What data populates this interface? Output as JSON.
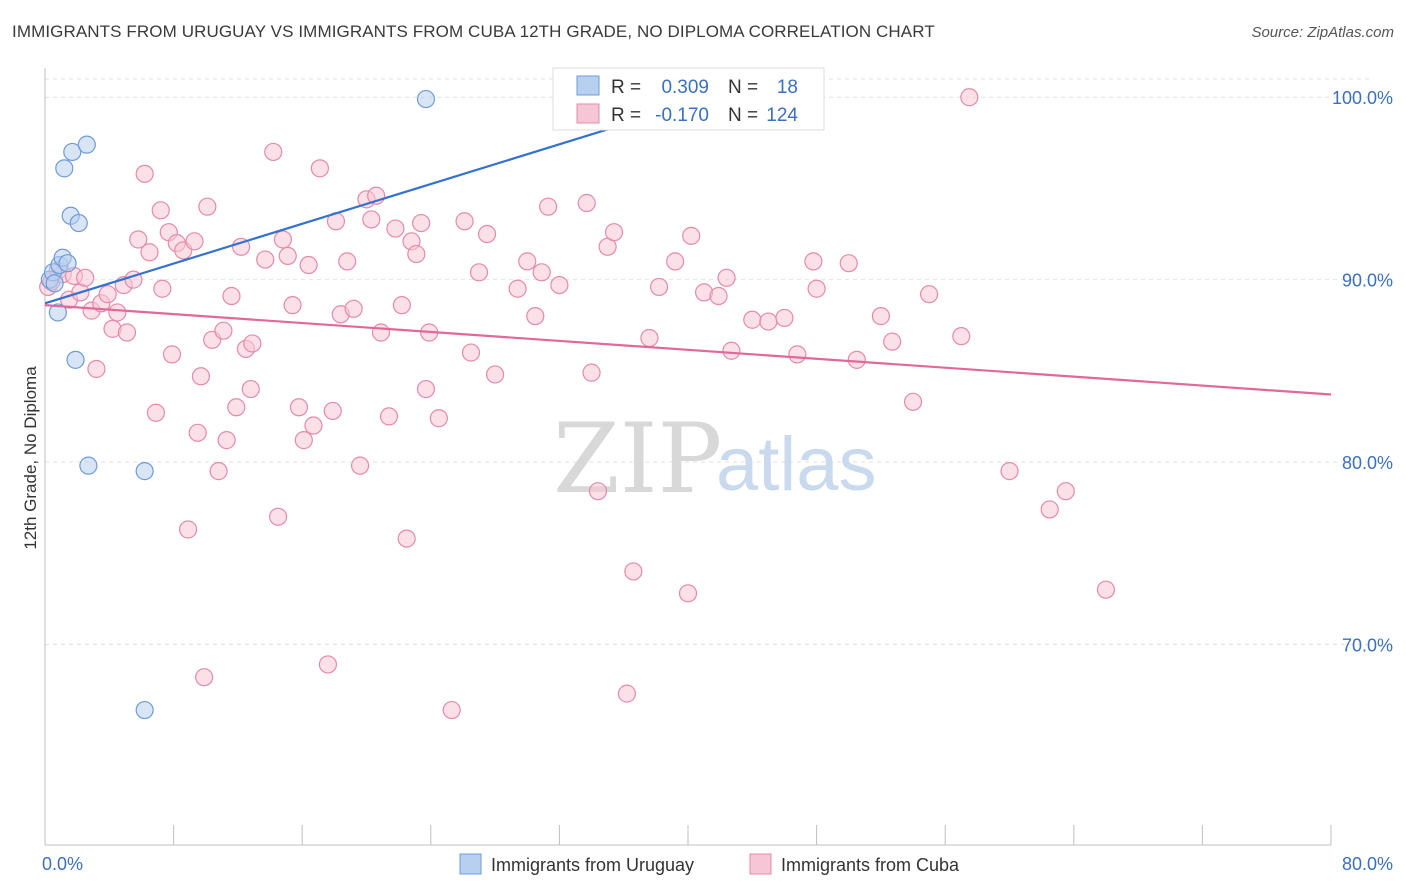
{
  "title": "IMMIGRANTS FROM URUGUAY VS IMMIGRANTS FROM CUBA 12TH GRADE, NO DIPLOMA CORRELATION CHART",
  "source": "Source: ZipAtlas.com",
  "watermark": {
    "zip": "ZIP",
    "atlas": "atlas"
  },
  "colors": {
    "uruguay_fill": "#b8d0f0",
    "uruguay_stroke": "#6f9bd8",
    "uruguay_line": "#3472cf",
    "cuba_fill": "#f7c6d6",
    "cuba_stroke": "#e58aab",
    "cuba_line": "#e0689a"
  },
  "stats_box": {
    "uruguay": {
      "r_label": "R =",
      "r_value": "0.309",
      "n_label": "N =",
      "n_value": "18"
    },
    "cuba": {
      "r_label": "R =",
      "r_value": "-0.170",
      "n_label": "N =",
      "n_value": "124"
    }
  },
  "chart_data": {
    "type": "scatter",
    "title": "IMMIGRANTS FROM URUGUAY VS IMMIGRANTS FROM CUBA 12TH GRADE, NO DIPLOMA CORRELATION CHART",
    "xlabel": "",
    "ylabel": "12th Grade, No Diploma",
    "xlim": [
      0,
      80
    ],
    "ylim": [
      59,
      101
    ],
    "x_tick_labels": [
      "0.0%",
      "80.0%"
    ],
    "y_ticks": [
      70,
      80,
      90,
      100
    ],
    "y_tick_labels": [
      "70.0%",
      "80.0%",
      "90.0%",
      "100.0%"
    ],
    "grid": true,
    "legend_position": "bottom",
    "series": [
      {
        "name": "Immigrants from Uruguay",
        "points": [
          [
            0.3,
            90.0
          ],
          [
            0.5,
            90.4
          ],
          [
            0.6,
            89.8
          ],
          [
            0.8,
            88.2
          ],
          [
            0.9,
            90.8
          ],
          [
            1.1,
            91.2
          ],
          [
            1.2,
            96.1
          ],
          [
            1.4,
            90.9
          ],
          [
            1.6,
            93.5
          ],
          [
            1.7,
            97.0
          ],
          [
            1.9,
            85.6
          ],
          [
            2.1,
            93.1
          ],
          [
            2.6,
            97.4
          ],
          [
            2.7,
            79.8
          ],
          [
            6.2,
            79.5
          ],
          [
            6.2,
            66.4
          ],
          [
            23.7,
            99.9
          ],
          [
            35.8,
            99.9
          ]
        ],
        "trend": {
          "x": [
            0,
            40
          ],
          "y": [
            88.7,
            99.6
          ]
        }
      },
      {
        "name": "Immigrants from Cuba",
        "points": [
          [
            0.2,
            89.6
          ],
          [
            0.4,
            89.9
          ],
          [
            0.8,
            90.5
          ],
          [
            1.1,
            90.3
          ],
          [
            1.5,
            88.9
          ],
          [
            1.8,
            90.2
          ],
          [
            2.2,
            89.3
          ],
          [
            2.5,
            90.1
          ],
          [
            2.9,
            88.3
          ],
          [
            3.2,
            85.1
          ],
          [
            3.5,
            88.7
          ],
          [
            3.9,
            89.2
          ],
          [
            4.2,
            87.3
          ],
          [
            4.5,
            88.2
          ],
          [
            4.9,
            89.7
          ],
          [
            5.1,
            87.1
          ],
          [
            5.5,
            90.0
          ],
          [
            5.8,
            92.2
          ],
          [
            6.2,
            95.8
          ],
          [
            6.5,
            91.5
          ],
          [
            6.9,
            82.7
          ],
          [
            7.2,
            93.8
          ],
          [
            7.3,
            89.5
          ],
          [
            7.7,
            92.6
          ],
          [
            7.9,
            85.9
          ],
          [
            8.2,
            92.0
          ],
          [
            8.6,
            91.6
          ],
          [
            8.9,
            76.3
          ],
          [
            9.3,
            92.1
          ],
          [
            9.5,
            81.6
          ],
          [
            9.7,
            84.7
          ],
          [
            9.9,
            68.2
          ],
          [
            10.1,
            94.0
          ],
          [
            10.4,
            86.7
          ],
          [
            10.8,
            79.5
          ],
          [
            11.1,
            87.2
          ],
          [
            11.3,
            81.2
          ],
          [
            11.6,
            89.1
          ],
          [
            11.9,
            83.0
          ],
          [
            12.2,
            91.8
          ],
          [
            12.5,
            86.2
          ],
          [
            12.8,
            84.0
          ],
          [
            12.9,
            86.5
          ],
          [
            13.7,
            91.1
          ],
          [
            14.2,
            97.0
          ],
          [
            14.5,
            77.0
          ],
          [
            14.8,
            92.2
          ],
          [
            15.1,
            91.3
          ],
          [
            15.4,
            88.6
          ],
          [
            15.8,
            83.0
          ],
          [
            16.1,
            81.2
          ],
          [
            16.4,
            90.8
          ],
          [
            16.7,
            82.0
          ],
          [
            17.1,
            96.1
          ],
          [
            17.6,
            68.9
          ],
          [
            17.9,
            82.8
          ],
          [
            18.1,
            93.2
          ],
          [
            18.4,
            88.1
          ],
          [
            18.8,
            91.0
          ],
          [
            19.2,
            88.4
          ],
          [
            19.6,
            79.8
          ],
          [
            20.0,
            94.4
          ],
          [
            20.3,
            93.3
          ],
          [
            20.6,
            94.6
          ],
          [
            20.9,
            87.1
          ],
          [
            21.4,
            82.5
          ],
          [
            21.8,
            92.8
          ],
          [
            22.2,
            88.6
          ],
          [
            22.5,
            75.8
          ],
          [
            22.8,
            92.1
          ],
          [
            23.1,
            91.4
          ],
          [
            23.4,
            93.1
          ],
          [
            23.7,
            84.0
          ],
          [
            23.9,
            87.1
          ],
          [
            24.5,
            82.4
          ],
          [
            25.3,
            66.4
          ],
          [
            26.1,
            93.2
          ],
          [
            26.5,
            86.0
          ],
          [
            27.0,
            90.4
          ],
          [
            27.5,
            92.5
          ],
          [
            28.0,
            84.8
          ],
          [
            29.4,
            89.5
          ],
          [
            30.0,
            91.0
          ],
          [
            30.5,
            88.0
          ],
          [
            30.9,
            90.4
          ],
          [
            31.3,
            94.0
          ],
          [
            32.0,
            89.7
          ],
          [
            33.7,
            94.2
          ],
          [
            34.0,
            84.9
          ],
          [
            34.4,
            78.4
          ],
          [
            35.0,
            91.8
          ],
          [
            35.4,
            92.6
          ],
          [
            36.2,
            67.3
          ],
          [
            36.6,
            74.0
          ],
          [
            37.6,
            86.8
          ],
          [
            38.2,
            89.6
          ],
          [
            39.2,
            91.0
          ],
          [
            40.0,
            72.8
          ],
          [
            40.2,
            92.4
          ],
          [
            41.0,
            89.3
          ],
          [
            41.9,
            89.1
          ],
          [
            42.4,
            90.1
          ],
          [
            42.7,
            86.1
          ],
          [
            44.0,
            87.8
          ],
          [
            45.0,
            87.7
          ],
          [
            46.0,
            87.9
          ],
          [
            46.8,
            85.9
          ],
          [
            47.8,
            91.0
          ],
          [
            48.0,
            89.5
          ],
          [
            50.0,
            90.9
          ],
          [
            50.5,
            85.6
          ],
          [
            52.0,
            88.0
          ],
          [
            52.7,
            86.6
          ],
          [
            54.0,
            83.3
          ],
          [
            55.0,
            89.2
          ],
          [
            57.0,
            86.9
          ],
          [
            57.5,
            100.0
          ],
          [
            60.0,
            79.5
          ],
          [
            62.5,
            77.4
          ],
          [
            63.5,
            78.4
          ],
          [
            66.0,
            73.0
          ]
        ],
        "trend": {
          "x": [
            0,
            80
          ],
          "y": [
            88.6,
            83.7
          ]
        }
      }
    ]
  }
}
